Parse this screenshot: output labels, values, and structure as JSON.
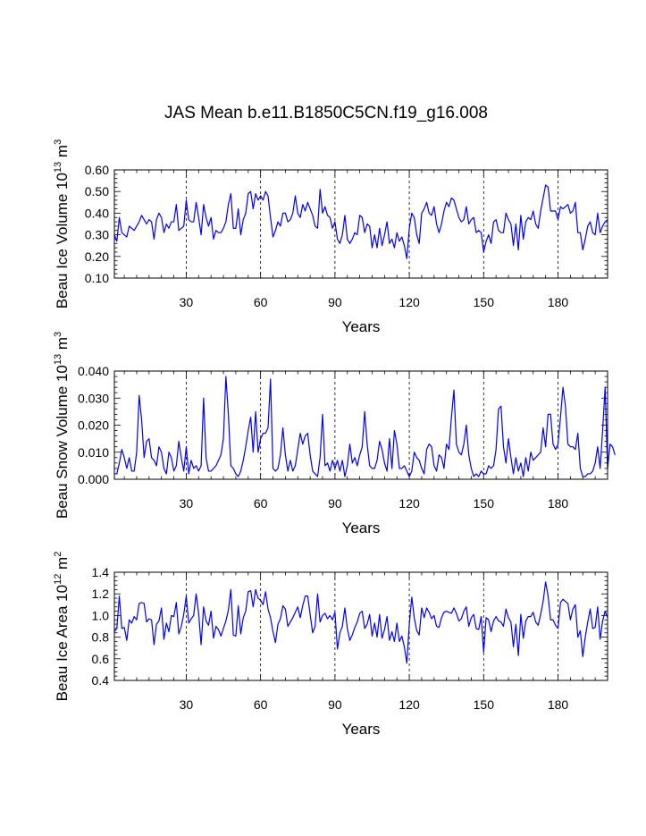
{
  "figure": {
    "title": "JAS Mean b.e11.B1850C5CN.f19_g16.008",
    "line_color": "#0000ff"
  },
  "chart_data": [
    {
      "type": "line",
      "title": "",
      "xlabel": "Years",
      "ylabel_base": "Beau Ice Volume 10",
      "ylabel_exp": "13",
      "ylabel_unit": "m",
      "ylabel_unit_exp": "3",
      "xlim": [
        1,
        200
      ],
      "ylim": [
        0.1,
        0.6
      ],
      "xticks": [
        30,
        60,
        90,
        120,
        150,
        180
      ],
      "xtick_labels": [
        "30",
        "60",
        "90",
        "120",
        "150",
        "180"
      ],
      "yticks": [
        0.1,
        0.2,
        0.3,
        0.4,
        0.5,
        0.6
      ],
      "ytick_labels": [
        "0.10",
        "0.20",
        "0.30",
        "0.40",
        "0.50",
        "0.60"
      ],
      "vgrid_dashed_at": [
        30,
        60,
        90,
        120,
        150,
        180
      ],
      "series": [
        {
          "name": "Beau Ice Volume",
          "x_start": 1,
          "values": [
            0.3,
            0.27,
            0.38,
            0.31,
            0.3,
            0.29,
            0.34,
            0.33,
            0.32,
            0.34,
            0.36,
            0.39,
            0.37,
            0.35,
            0.37,
            0.36,
            0.28,
            0.37,
            0.4,
            0.38,
            0.31,
            0.35,
            0.33,
            0.36,
            0.36,
            0.44,
            0.32,
            0.33,
            0.34,
            0.46,
            0.37,
            0.36,
            0.36,
            0.45,
            0.38,
            0.3,
            0.44,
            0.38,
            0.34,
            0.38,
            0.28,
            0.32,
            0.31,
            0.31,
            0.33,
            0.36,
            0.44,
            0.49,
            0.33,
            0.33,
            0.42,
            0.3,
            0.37,
            0.4,
            0.49,
            0.5,
            0.42,
            0.49,
            0.46,
            0.48,
            0.46,
            0.5,
            0.48,
            0.38,
            0.29,
            0.32,
            0.36,
            0.34,
            0.4,
            0.4,
            0.36,
            0.37,
            0.4,
            0.48,
            0.4,
            0.38,
            0.44,
            0.41,
            0.45,
            0.42,
            0.39,
            0.34,
            0.33,
            0.51,
            0.4,
            0.43,
            0.39,
            0.38,
            0.33,
            0.36,
            0.28,
            0.26,
            0.3,
            0.39,
            0.28,
            0.26,
            0.28,
            0.31,
            0.3,
            0.39,
            0.38,
            0.31,
            0.35,
            0.34,
            0.24,
            0.3,
            0.24,
            0.33,
            0.25,
            0.3,
            0.36,
            0.26,
            0.28,
            0.24,
            0.31,
            0.27,
            0.29,
            0.25,
            0.19,
            0.33,
            0.4,
            0.38,
            0.3,
            0.26,
            0.4,
            0.42,
            0.45,
            0.4,
            0.39,
            0.43,
            0.35,
            0.31,
            0.35,
            0.41,
            0.45,
            0.43,
            0.47,
            0.46,
            0.42,
            0.38,
            0.36,
            0.37,
            0.43,
            0.35,
            0.37,
            0.38,
            0.31,
            0.32,
            0.31,
            0.22,
            0.27,
            0.3,
            0.26,
            0.36,
            0.37,
            0.32,
            0.31,
            0.31,
            0.4,
            0.37,
            0.35,
            0.25,
            0.35,
            0.23,
            0.39,
            0.28,
            0.36,
            0.38,
            0.37,
            0.41,
            0.35,
            0.33,
            0.41,
            0.47,
            0.53,
            0.52,
            0.41,
            0.41,
            0.41,
            0.37,
            0.43,
            0.42,
            0.43,
            0.44,
            0.4,
            0.41,
            0.45,
            0.31,
            0.31,
            0.23,
            0.28,
            0.34,
            0.36,
            0.31,
            0.3,
            0.4,
            0.31,
            0.34,
            0.36,
            0.37
          ]
        }
      ]
    },
    {
      "type": "line",
      "title": "",
      "xlabel": "Years",
      "ylabel_base": "Beau Snow Volume 10",
      "ylabel_exp": "13",
      "ylabel_unit": "m",
      "ylabel_unit_exp": "3",
      "xlim": [
        1,
        200
      ],
      "ylim": [
        0.0,
        0.04
      ],
      "xticks": [
        30,
        60,
        90,
        120,
        150,
        180
      ],
      "xtick_labels": [
        "30",
        "60",
        "90",
        "120",
        "150",
        "180"
      ],
      "yticks": [
        0.0,
        0.01,
        0.02,
        0.03,
        0.04
      ],
      "ytick_labels": [
        "0.000",
        "0.010",
        "0.020",
        "0.030",
        "0.040"
      ],
      "vgrid_dashed_at": [
        30,
        60,
        90,
        120,
        150,
        180
      ],
      "series": [
        {
          "name": "Beau Snow Volume",
          "x_start": 1,
          "values": [
            0.002,
            0.002,
            0.006,
            0.011,
            0.008,
            0.004,
            0.008,
            0.003,
            0.003,
            0.01,
            0.031,
            0.022,
            0.008,
            0.014,
            0.015,
            0.008,
            0.007,
            0.005,
            0.012,
            0.01,
            0.004,
            0.002,
            0.01,
            0.008,
            0.003,
            0.005,
            0.014,
            0.008,
            0.003,
            0.012,
            0.002,
            0.007,
            0.004,
            0.005,
            0.003,
            0.005,
            0.03,
            0.008,
            0.003,
            0.003,
            0.004,
            0.005,
            0.007,
            0.009,
            0.015,
            0.038,
            0.024,
            0.005,
            0.004,
            0.002,
            0.001,
            0.003,
            0.007,
            0.012,
            0.018,
            0.023,
            0.01,
            0.025,
            0.01,
            0.015,
            0.017,
            0.017,
            0.019,
            0.037,
            0.004,
            0.003,
            0.004,
            0.009,
            0.019,
            0.009,
            0.003,
            0.007,
            0.003,
            0.005,
            0.011,
            0.017,
            0.013,
            0.016,
            0.017,
            0.009,
            0.003,
            0.002,
            0.001,
            0.008,
            0.024,
            0.005,
            0.006,
            0.003,
            0.007,
            0.004,
            0.007,
            0.003,
            0.007,
            0.001,
            0.005,
            0.013,
            0.006,
            0.008,
            0.005,
            0.009,
            0.012,
            0.025,
            0.013,
            0.005,
            0.004,
            0.004,
            0.007,
            0.014,
            0.011,
            0.006,
            0.003,
            0.015,
            0.004,
            0.018,
            0.013,
            0.004,
            0.004,
            0.005,
            0.003,
            0.001,
            0.003,
            0.01,
            0.008,
            0.007,
            0.004,
            0.002,
            0.011,
            0.013,
            0.012,
            0.005,
            0.003,
            0.009,
            0.008,
            0.004,
            0.013,
            0.011,
            0.023,
            0.033,
            0.013,
            0.01,
            0.009,
            0.013,
            0.02,
            0.009,
            0.004,
            0.001,
            0.002,
            0.001,
            0.003,
            0.002,
            0.002,
            0.005,
            0.004,
            0.005,
            0.011,
            0.026,
            0.027,
            0.012,
            0.006,
            0.015,
            0.008,
            0.002,
            0.008,
            0.003,
            0.006,
            0.001,
            0.008,
            0.003,
            0.01,
            0.007,
            0.008,
            0.009,
            0.01,
            0.019,
            0.012,
            0.024,
            0.024,
            0.013,
            0.011,
            0.013,
            0.023,
            0.034,
            0.027,
            0.013,
            0.012,
            0.012,
            0.011,
            0.017,
            0.004,
            0.001,
            0.001,
            0.002,
            0.002,
            0.003,
            0.006,
            0.012,
            0.004,
            0.018,
            0.034,
            0.004,
            0.013,
            0.012,
            0.009
          ]
        }
      ]
    },
    {
      "type": "line",
      "title": "",
      "xlabel": "Years",
      "ylabel_base": "Beau Ice Area 10",
      "ylabel_exp": "12",
      "ylabel_unit": "m",
      "ylabel_unit_exp": "2",
      "xlim": [
        1,
        200
      ],
      "ylim": [
        0.4,
        1.4
      ],
      "xticks": [
        30,
        60,
        90,
        120,
        150,
        180
      ],
      "xtick_labels": [
        "30",
        "60",
        "90",
        "120",
        "150",
        "180"
      ],
      "yticks": [
        0.4,
        0.6,
        0.8,
        1.0,
        1.2,
        1.4
      ],
      "ytick_labels": [
        "0.4",
        "0.6",
        "0.8",
        "1.0",
        "1.2",
        "1.4"
      ],
      "vgrid_dashed_at": [
        30,
        60,
        90,
        120,
        150,
        180
      ],
      "series": [
        {
          "name": "Beau Ice Area",
          "x_start": 1,
          "values": [
            0.85,
            0.88,
            1.18,
            0.88,
            0.89,
            0.77,
            0.96,
            0.93,
            0.99,
            0.96,
            1.11,
            1.12,
            1.11,
            0.94,
            0.97,
            0.96,
            0.73,
            0.92,
            0.95,
            1.07,
            0.78,
            0.93,
            0.85,
            1.0,
            0.99,
            1.12,
            0.83,
            0.9,
            1.01,
            1.18,
            0.93,
            0.97,
            1.0,
            1.2,
            1.02,
            0.73,
            1.08,
            0.95,
            0.91,
            1.04,
            0.79,
            0.9,
            0.87,
            0.81,
            0.88,
            0.95,
            1.05,
            1.24,
            0.82,
            0.81,
            1.09,
            0.83,
            0.98,
            1.04,
            1.22,
            1.23,
            1.08,
            1.24,
            1.16,
            1.14,
            1.1,
            1.22,
            1.06,
            0.98,
            0.85,
            0.75,
            0.92,
            0.97,
            1.09,
            1.06,
            0.9,
            0.94,
            0.98,
            1.03,
            1.08,
            0.98,
            1.09,
            1.18,
            1.18,
            1.01,
            0.84,
            0.9,
            1.2,
            0.94,
            1.0,
            1.02,
            0.97,
            1.0,
            0.96,
            1.03,
            0.69,
            0.84,
            0.9,
            1.07,
            0.88,
            0.77,
            0.82,
            0.89,
            0.94,
            1.02,
            1.04,
            0.88,
            0.92,
            1.01,
            0.81,
            0.93,
            0.8,
            1.01,
            0.79,
            0.87,
            0.99,
            0.77,
            0.85,
            0.76,
            0.93,
            0.76,
            0.81,
            0.71,
            0.56,
            0.92,
            1.17,
            0.98,
            0.86,
            0.82,
            1.07,
            0.98,
            1.07,
            1.03,
            0.97,
            1.0,
            0.9,
            0.89,
            0.98,
            1.03,
            1.04,
            1.03,
            1.02,
            1.07,
            1.02,
            0.95,
            0.97,
            1.04,
            1.08,
            0.9,
            0.98,
            1.01,
            0.88,
            0.87,
            0.99,
            0.66,
            0.98,
            0.96,
            0.85,
            0.95,
            0.99,
            0.95,
            0.94,
            0.9,
            1.06,
            0.98,
            0.94,
            0.71,
            0.92,
            0.63,
            1.01,
            0.79,
            0.95,
            0.99,
            0.99,
            1.03,
            0.94,
            0.91,
            1.01,
            1.13,
            1.31,
            1.18,
            0.96,
            0.96,
            0.91,
            0.88,
            1.12,
            1.15,
            1.13,
            1.11,
            0.96,
            1.06,
            1.1,
            0.8,
            0.86,
            0.62,
            0.8,
            0.94,
            1.06,
            0.88,
            0.89,
            1.08,
            0.78,
            0.95,
            1.04,
            0.98
          ]
        }
      ]
    }
  ]
}
